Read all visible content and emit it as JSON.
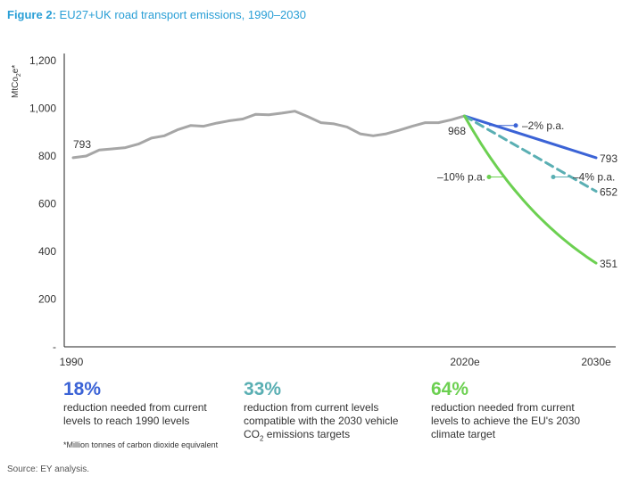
{
  "figure": {
    "label": "Figure 2:",
    "title": "EU27+UK road transport emissions, 1990–2030"
  },
  "chart_data": {
    "type": "line",
    "title": "EU27+UK road transport emissions, 1990–2030",
    "ylabel_main": "MtCo",
    "ylabel_sub": "2",
    "ylabel_suffix": "e*",
    "ylim": [
      0,
      1200
    ],
    "yticks": [
      0,
      200,
      400,
      600,
      800,
      1000,
      1200
    ],
    "ytick_labels": [
      "-",
      "200",
      "400",
      "600",
      "800",
      "1,000",
      "1,200"
    ],
    "xlim": [
      1990,
      2030
    ],
    "xticks": [
      1990,
      2020,
      2030
    ],
    "xtick_labels": [
      "1990",
      "2020e",
      "2030e"
    ],
    "series": [
      {
        "name": "historical",
        "color": "#a6a6a6",
        "style": "solid",
        "x": [
          1990,
          1991,
          1992,
          1993,
          1994,
          1995,
          1996,
          1997,
          1998,
          1999,
          2000,
          2001,
          2002,
          2003,
          2004,
          2005,
          2006,
          2007,
          2008,
          2009,
          2010,
          2011,
          2012,
          2013,
          2014,
          2015,
          2016,
          2017,
          2018,
          2019,
          2020
        ],
        "y": [
          793,
          800,
          825,
          830,
          835,
          850,
          875,
          885,
          910,
          928,
          925,
          938,
          948,
          955,
          975,
          973,
          980,
          988,
          965,
          940,
          935,
          922,
          893,
          885,
          893,
          908,
          925,
          940,
          940,
          952,
          968
        ]
      },
      {
        "name": "-2% p.a.",
        "color": "#3b63d6",
        "style": "solid",
        "x": [
          2020,
          2030
        ],
        "y": [
          968,
          793
        ]
      },
      {
        "name": "-4% p.a.",
        "color": "#5aafb3",
        "style": "dashed",
        "x": [
          2020,
          2030
        ],
        "y": [
          968,
          652
        ]
      },
      {
        "name": "-10% p.a.",
        "color": "#6cd051",
        "style": "solid",
        "curve": "exponential",
        "rate": -0.1,
        "x": [
          2020,
          2030
        ],
        "y": [
          968,
          351
        ]
      }
    ],
    "annotations": {
      "start_value": "793",
      "value_2020": "968",
      "end_values": [
        "793",
        "652",
        "351"
      ],
      "rate_labels": [
        "–2% p.a.",
        "–4% p.a.",
        "–10% p.a."
      ]
    }
  },
  "stats": [
    {
      "pct": "18%",
      "color": "#3b63d6",
      "desc": "reduction needed from current levels to reach 1990 levels"
    },
    {
      "pct": "33%",
      "color": "#5aafb3",
      "desc_before": "reduction from current levels compatible with the 2030 vehicle CO",
      "desc_sub": "2",
      "desc_after": " emissions targets"
    },
    {
      "pct": "64%",
      "color": "#6cd051",
      "desc": "reduction needed from current levels to achieve the EU's 2030 climate target"
    }
  ],
  "footnote": "*Million tonnes of carbon dioxide equivalent",
  "source": "Source: EY analysis."
}
